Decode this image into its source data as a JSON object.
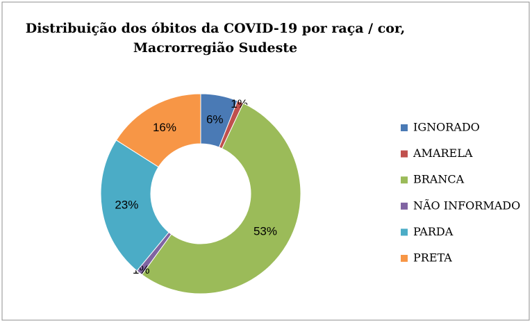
{
  "chart_data": {
    "type": "donut",
    "title": "Distribuição dos óbitos da COVID-19 por raça / cor,",
    "subtitle": "Macrorregião Sudeste",
    "categories": [
      "IGNORADO",
      "AMARELA",
      "BRANCA",
      "NÃO INFORMADO",
      "PARDA",
      "PRETA"
    ],
    "values": [
      6,
      1,
      53,
      1,
      23,
      16
    ],
    "value_labels": [
      "6%",
      "1%",
      "53%",
      "1%",
      "23%",
      "16%"
    ],
    "colors": [
      "#4a7ab5",
      "#c0504d",
      "#9bbb59",
      "#8064a2",
      "#4bacc6",
      "#f79646"
    ],
    "legend": "right"
  }
}
